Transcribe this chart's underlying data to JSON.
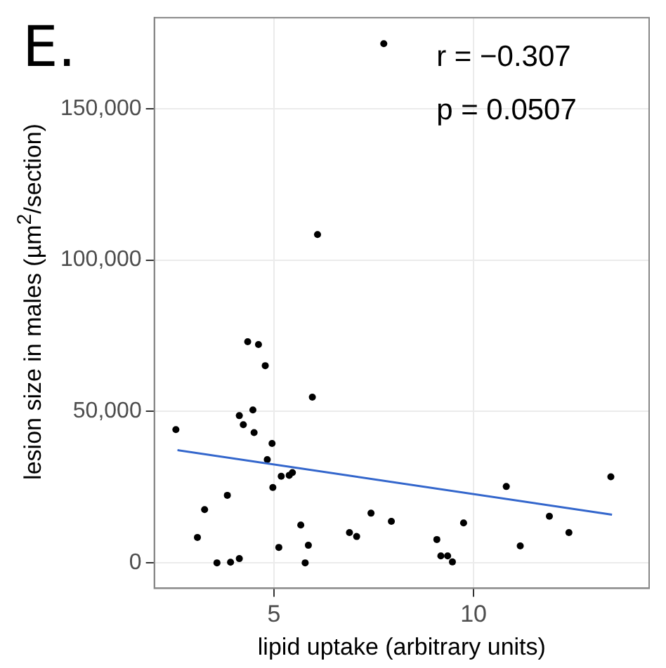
{
  "chart_data": {
    "type": "scatter",
    "title": "E.",
    "xlabel": "lipid uptake (arbitrary units)",
    "ylabel": "lesion size in males (µm$^{2}$/section)",
    "annotations": [
      "r = −0.307",
      "p = 0.0507"
    ],
    "xlim": [
      2.0,
      14.4
    ],
    "ylim": [
      -8400,
      180000
    ],
    "xticks": [
      5,
      10
    ],
    "yticks": [
      {
        "value": 0,
        "label": "0"
      },
      {
        "value": 50000,
        "label": "50,000"
      },
      {
        "value": 100000,
        "label": "100,000"
      },
      {
        "value": 150000,
        "label": "150,000"
      }
    ],
    "grid": true,
    "marker": "circle",
    "legend": false,
    "series": [
      {
        "type": "scatter",
        "color": "#000000",
        "x": [
          2.54,
          3.08,
          3.26,
          3.57,
          3.83,
          3.91,
          4.13,
          4.13,
          4.23,
          4.34,
          4.47,
          4.5,
          4.61,
          4.78,
          4.83,
          4.95,
          4.97,
          5.12,
          5.18,
          5.38,
          5.46,
          5.67,
          5.78,
          5.86,
          5.96,
          6.09,
          6.89,
          7.07,
          7.43,
          7.75,
          7.94,
          9.08,
          9.18,
          9.35,
          9.47,
          9.75,
          10.82,
          11.17,
          11.9,
          12.39,
          13.44
        ],
        "values": [
          44000,
          8400,
          17600,
          0,
          22300,
          200,
          1400,
          48600,
          45600,
          73000,
          50500,
          43000,
          72100,
          65100,
          34100,
          39400,
          24900,
          5100,
          28600,
          28900,
          29800,
          12500,
          0,
          5800,
          54700,
          108400,
          10000,
          8700,
          16400,
          171400,
          13700,
          7700,
          2300,
          2300,
          300,
          13200,
          25200,
          5600,
          15400,
          10000,
          28400
        ]
      },
      {
        "type": "line",
        "marker": "none",
        "color": "#3366cc",
        "x": [
          2.58,
          13.47
        ],
        "values": [
          37200,
          15900
        ]
      }
    ]
  }
}
